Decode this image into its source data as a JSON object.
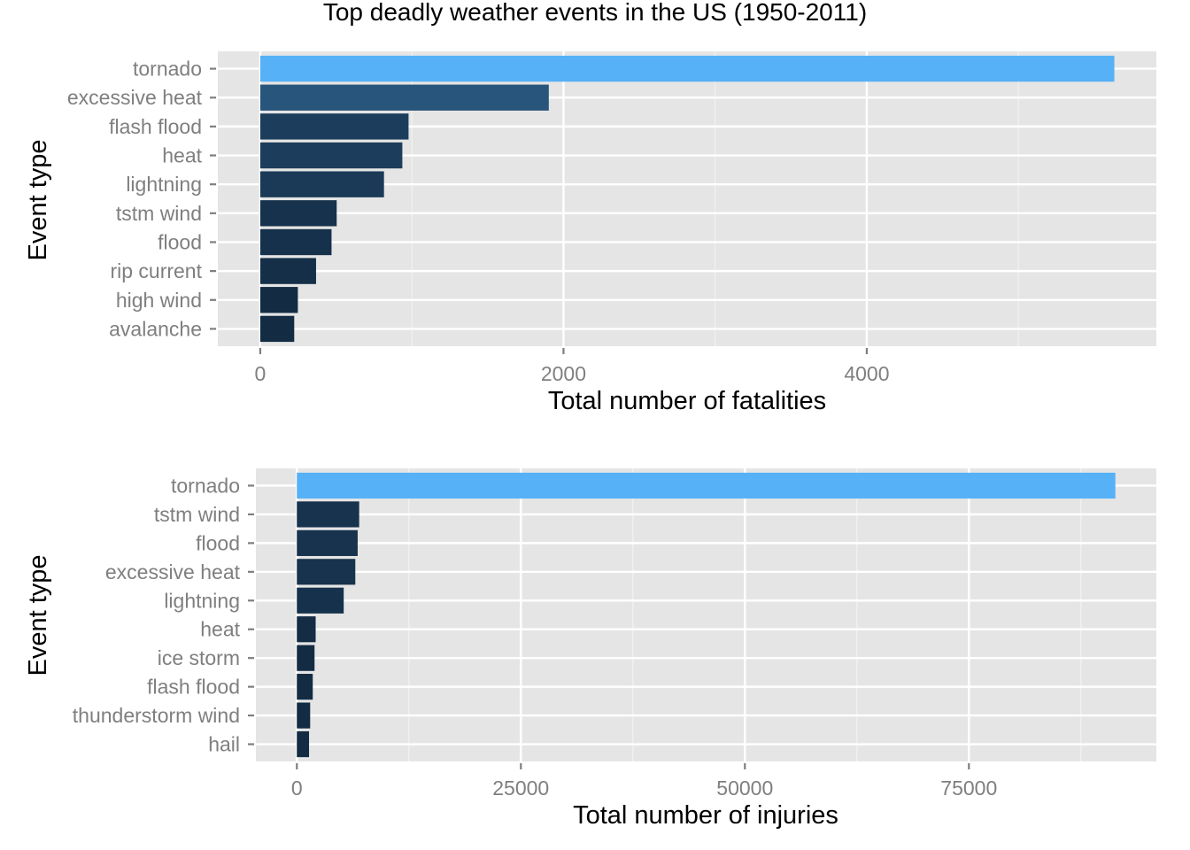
{
  "title": "Top deadly weather events in the US (1950-2011)",
  "colors": {
    "panel": "#e5e5e5",
    "grid_major": "#ffffff",
    "grid_minor": "#f2f2f2",
    "low": "#132b43",
    "high": "#56b1f7",
    "tick": "#7f7f7f"
  },
  "chart_data": [
    {
      "type": "bar",
      "orientation": "horizontal",
      "categories": [
        "tornado",
        "excessive heat",
        "flash flood",
        "heat",
        "lightning",
        "tstm wind",
        "flood",
        "rip current",
        "high wind",
        "avalanche"
      ],
      "values": [
        5633,
        1903,
        978,
        937,
        816,
        504,
        470,
        368,
        248,
        224
      ],
      "xlabel": "Total number of fatalities",
      "ylabel": "Event type",
      "xlim": [
        -280,
        5910
      ],
      "xticks": [
        0,
        2000,
        4000
      ],
      "xtick_labels": [
        "0",
        "2000",
        "4000"
      ],
      "grid": true
    },
    {
      "type": "bar",
      "orientation": "horizontal",
      "categories": [
        "tornado",
        "tstm wind",
        "flood",
        "excessive heat",
        "lightning",
        "heat",
        "ice storm",
        "flash flood",
        "thunderstorm wind",
        "hail"
      ],
      "values": [
        91346,
        6957,
        6789,
        6525,
        5230,
        2100,
        1975,
        1777,
        1488,
        1361
      ],
      "xlabel": "Total number of injuries",
      "ylabel": "Event type",
      "xlim": [
        -4570,
        95920
      ],
      "xticks": [
        0,
        25000,
        50000,
        75000
      ],
      "xtick_labels": [
        "0",
        "25000",
        "50000",
        "75000"
      ],
      "grid": true
    }
  ]
}
